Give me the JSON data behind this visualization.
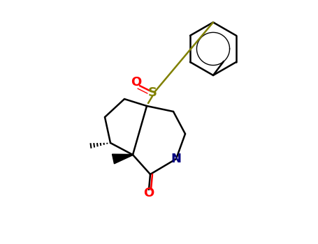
{
  "background_color": "#ffffff",
  "bond_color": "#000000",
  "S_color": "#808000",
  "O_color": "#ff0000",
  "N_color": "#000080",
  "figsize": [
    4.55,
    3.5
  ],
  "dpi": 100,
  "lw": 1.8,
  "S_label": "S",
  "O_label": "O",
  "N_label": "N"
}
